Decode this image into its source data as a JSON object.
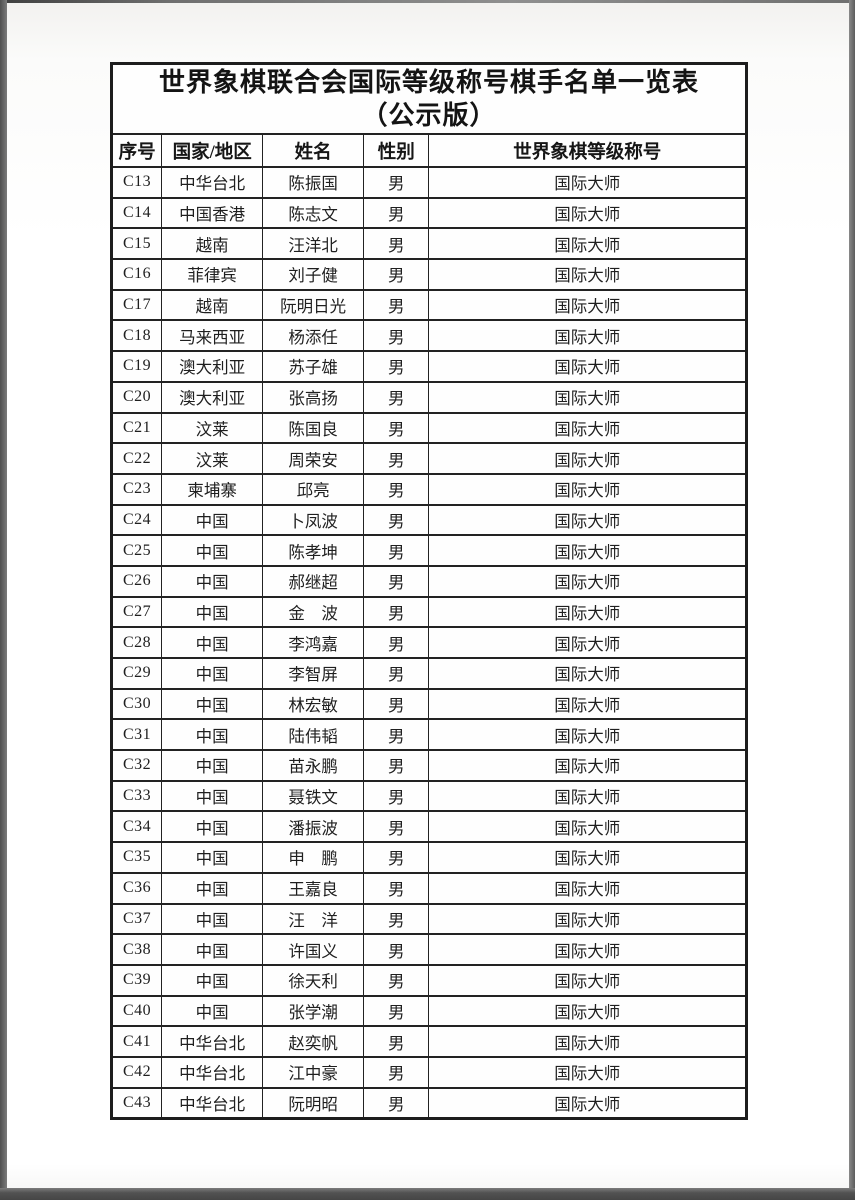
{
  "page": {
    "title_line1": "世界象棋联合会国际等级称号棋手名单一览表",
    "title_line2": "（公示版）"
  },
  "colors": {
    "table_border": "#1d1d1d",
    "frame_gray": "#5c5c5c",
    "paper": "#ffffff"
  },
  "table": {
    "headers": [
      "序号",
      "国家/地区",
      "姓名",
      "性别",
      "世界象棋等级称号"
    ],
    "rows": [
      {
        "id": "C13",
        "region": "中华台北",
        "name": "陈振国",
        "gender": "男",
        "title": "国际大师"
      },
      {
        "id": "C14",
        "region": "中国香港",
        "name": "陈志文",
        "gender": "男",
        "title": "国际大师"
      },
      {
        "id": "C15",
        "region": "越南",
        "name": "汪洋北",
        "gender": "男",
        "title": "国际大师"
      },
      {
        "id": "C16",
        "region": "菲律宾",
        "name": "刘子健",
        "gender": "男",
        "title": "国际大师"
      },
      {
        "id": "C17",
        "region": "越南",
        "name": "阮明日光",
        "gender": "男",
        "title": "国际大师"
      },
      {
        "id": "C18",
        "region": "马来西亚",
        "name": "杨添任",
        "gender": "男",
        "title": "国际大师"
      },
      {
        "id": "C19",
        "region": "澳大利亚",
        "name": "苏子雄",
        "gender": "男",
        "title": "国际大师"
      },
      {
        "id": "C20",
        "region": "澳大利亚",
        "name": "张高扬",
        "gender": "男",
        "title": "国际大师"
      },
      {
        "id": "C21",
        "region": "汶莱",
        "name": "陈国良",
        "gender": "男",
        "title": "国际大师"
      },
      {
        "id": "C22",
        "region": "汶莱",
        "name": "周荣安",
        "gender": "男",
        "title": "国际大师"
      },
      {
        "id": "C23",
        "region": "柬埔寨",
        "name": "邱亮",
        "gender": "男",
        "title": "国际大师"
      },
      {
        "id": "C24",
        "region": "中国",
        "name": "卜凤波",
        "gender": "男",
        "title": "国际大师"
      },
      {
        "id": "C25",
        "region": "中国",
        "name": "陈孝坤",
        "gender": "男",
        "title": "国际大师"
      },
      {
        "id": "C26",
        "region": "中国",
        "name": "郝继超",
        "gender": "男",
        "title": "国际大师"
      },
      {
        "id": "C27",
        "region": "中国",
        "name": "金　波",
        "gender": "男",
        "title": "国际大师"
      },
      {
        "id": "C28",
        "region": "中国",
        "name": "李鸿嘉",
        "gender": "男",
        "title": "国际大师"
      },
      {
        "id": "C29",
        "region": "中国",
        "name": "李智屏",
        "gender": "男",
        "title": "国际大师"
      },
      {
        "id": "C30",
        "region": "中国",
        "name": "林宏敏",
        "gender": "男",
        "title": "国际大师"
      },
      {
        "id": "C31",
        "region": "中国",
        "name": "陆伟韬",
        "gender": "男",
        "title": "国际大师"
      },
      {
        "id": "C32",
        "region": "中国",
        "name": "苗永鹏",
        "gender": "男",
        "title": "国际大师"
      },
      {
        "id": "C33",
        "region": "中国",
        "name": "聂铁文",
        "gender": "男",
        "title": "国际大师"
      },
      {
        "id": "C34",
        "region": "中国",
        "name": "潘振波",
        "gender": "男",
        "title": "国际大师"
      },
      {
        "id": "C35",
        "region": "中国",
        "name": "申　鹏",
        "gender": "男",
        "title": "国际大师"
      },
      {
        "id": "C36",
        "region": "中国",
        "name": "王嘉良",
        "gender": "男",
        "title": "国际大师"
      },
      {
        "id": "C37",
        "region": "中国",
        "name": "汪　洋",
        "gender": "男",
        "title": "国际大师"
      },
      {
        "id": "C38",
        "region": "中国",
        "name": "许国义",
        "gender": "男",
        "title": "国际大师"
      },
      {
        "id": "C39",
        "region": "中国",
        "name": "徐天利",
        "gender": "男",
        "title": "国际大师"
      },
      {
        "id": "C40",
        "region": "中国",
        "name": "张学潮",
        "gender": "男",
        "title": "国际大师"
      },
      {
        "id": "C41",
        "region": "中华台北",
        "name": "赵奕帆",
        "gender": "男",
        "title": "国际大师"
      },
      {
        "id": "C42",
        "region": "中华台北",
        "name": "江中豪",
        "gender": "男",
        "title": "国际大师"
      },
      {
        "id": "C43",
        "region": "中华台北",
        "name": "阮明昭",
        "gender": "男",
        "title": "国际大师"
      }
    ]
  }
}
